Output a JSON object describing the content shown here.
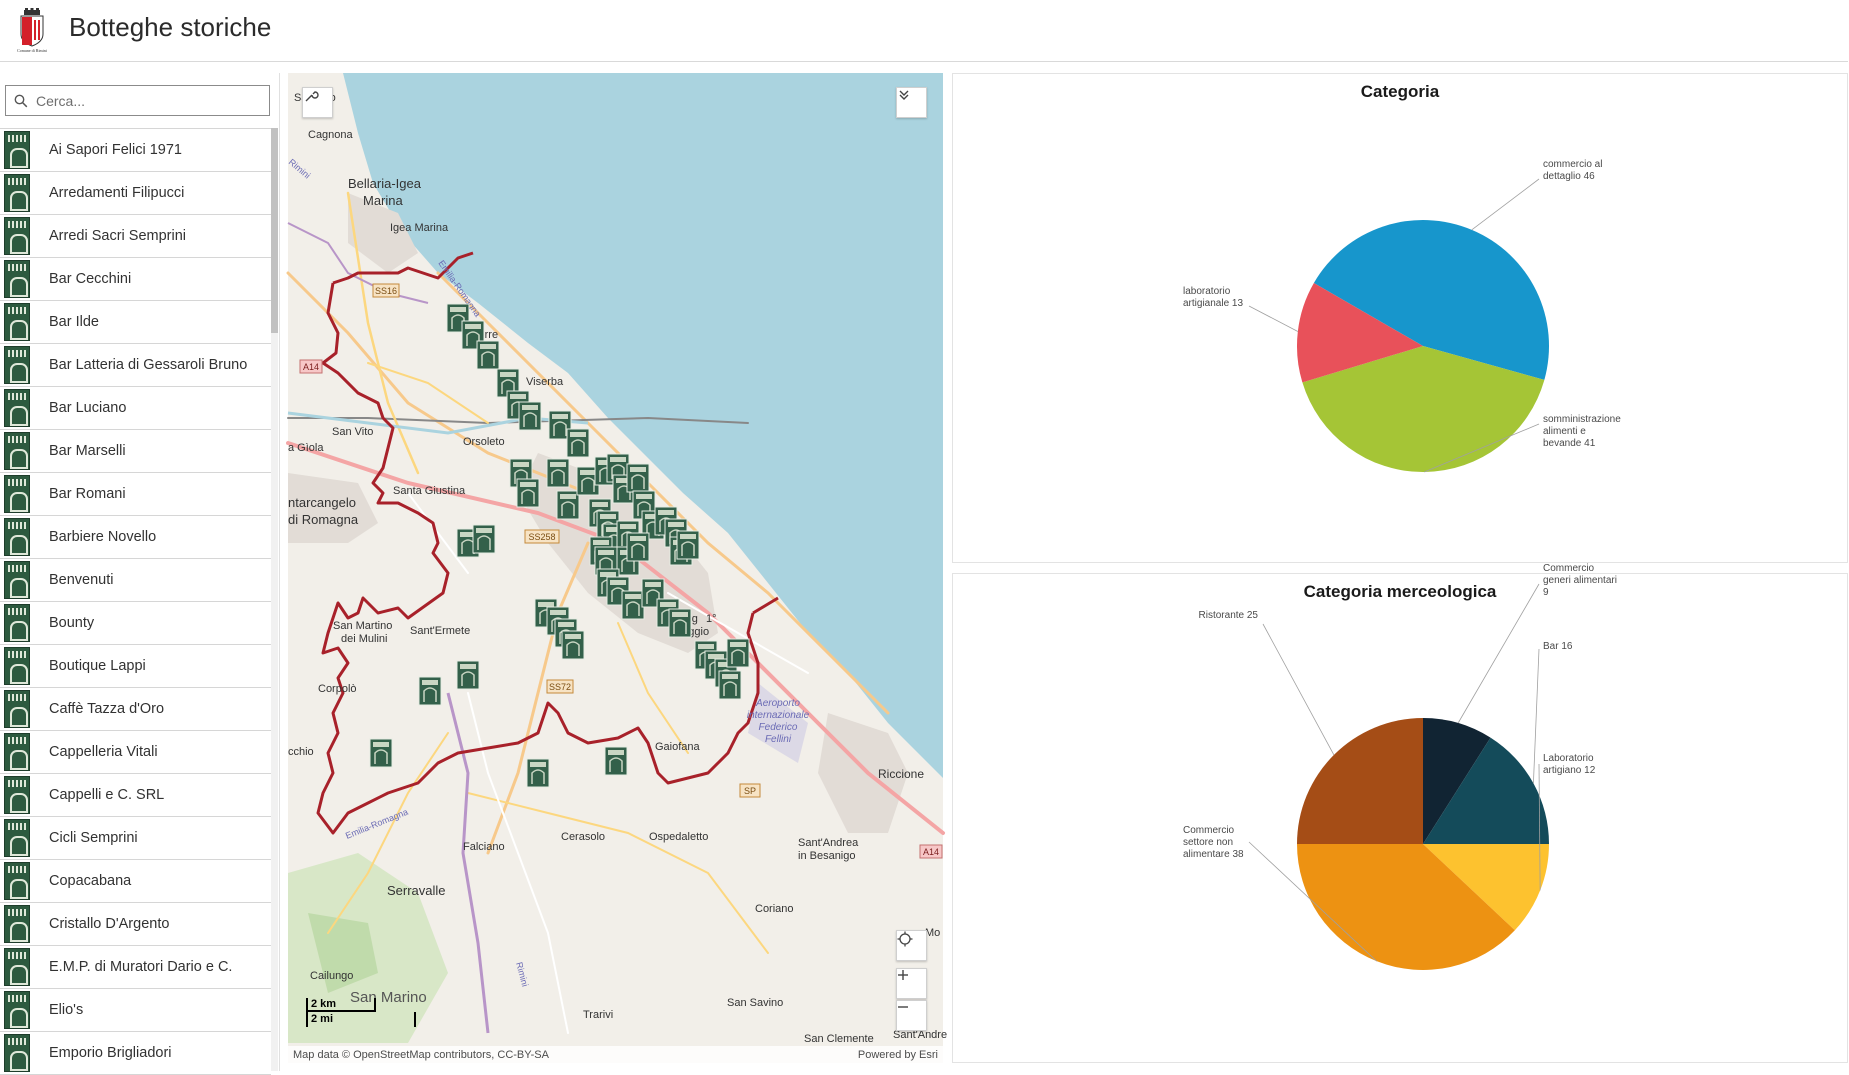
{
  "header": {
    "title": "Botteghe storiche",
    "logo_caption": "Comune di Rimini"
  },
  "search": {
    "placeholder": "Cerca..."
  },
  "list": {
    "items": [
      "Ai Sapori Felici 1971",
      "Arredamenti Filipucci",
      "Arredi Sacri Semprini",
      "Bar Cecchini",
      "Bar Ilde",
      "Bar Latteria di Gessaroli Bruno",
      "Bar Luciano",
      "Bar Marselli",
      "Bar Romani",
      "Barbiere Novello",
      "Benvenuti",
      "Bounty",
      "Boutique Lappi",
      "Caffè Tazza d'Oro",
      "Cappelleria Vitali",
      "Cappelli e C. SRL",
      "Cicli Semprini",
      "Copacabana",
      "Cristallo D'Argento",
      "E.M.P. di Muratori Dario e C.",
      "Elio's",
      "Emporio Brigliadori"
    ]
  },
  "map": {
    "attribution_left": "Map data © OpenStreetMap contributors, CC-BY-SA",
    "attribution_right": "Powered by Esri",
    "scale_km": "2 km",
    "scale_mi": "2 mi",
    "places": {
      "cagnona": "Cagnona",
      "bellaria": "Bellaria-Igea",
      "marina": "Marina",
      "igea": "Igea Marina",
      "san_vito": "San Vito",
      "orsoleto": "Orsoleto",
      "la_giola": "a Gìola",
      "santa_giustina": "Santa Giustina",
      "santarcangelo": "ntarcangelo",
      "di_romagna": "di Romagna",
      "san_martino": "San Martino",
      "dei_mulini": "dei Mulini",
      "santermete": "Sant'Ermete",
      "corpolo": "Corpolò",
      "cchio": "cchio",
      "villaggio": "Villagg",
      "maggio": "maggio",
      "primo": "1°",
      "galleria": "Gaiofana",
      "aeroporto1": "Aeroporto",
      "aeroporto2": "internazionale",
      "aeroporto3": "Federico",
      "aeroporto4": "Fellini",
      "riccione": "Riccione",
      "cerasolo": "Cerasolo",
      "ospedaletto": "Ospedaletto",
      "falciano": "Falciano",
      "serravalle": "Serravalle",
      "santandrea": "Sant'Andrea",
      "in_besanigo": "in Besanigo",
      "coriano": "Coriano",
      "cailungo": "Cailungo",
      "san_marino": "San Marino",
      "trarivi": "Trarivi",
      "san_savino": "San Savino",
      "san_clemente": "San Clemente",
      "santandrea_edge": "Sant'Andre",
      "torre": "Torre",
      "viserba": "Viserba",
      "sa": "Sa",
      "ro": "ro",
      "mo": "Mo",
      "rimini_river": "Rimini",
      "emilia_romagna1": "Emilia-Romagna",
      "emilia_romagna2": "Emilia-Romagna",
      "marecchia": "Marecchia",
      "rimini_river2": "Rimini"
    },
    "roads": {
      "ss16": "SS16",
      "a14": "A14",
      "ss258": "SS258",
      "ss72": "SS72",
      "sp": "SP",
      "a14b": "A14"
    }
  },
  "charts": {
    "colors": {
      "blue": "#1796cc",
      "red": "#e8515a",
      "green": "#a5c536",
      "navy": "#112433",
      "teal": "#144b5a",
      "yellow": "#fdc22f",
      "orange": "#ed9212",
      "brown": "#a54d16"
    }
  },
  "chart_data": [
    {
      "type": "pie",
      "title": "Categoria",
      "categories": [
        "commercio al dettaglio",
        "somministrazione alimenti e bevande",
        "laboratorio artigianale"
      ],
      "values": [
        46,
        41,
        13
      ],
      "labels": [
        "commercio al dettaglio 46",
        "somministrazione alimenti e bevande 41",
        "laboratorio artigianale 13"
      ]
    },
    {
      "type": "pie",
      "title": "Categoria merceologica",
      "categories": [
        "Commercio generi alimentari",
        "Bar",
        "Laboratorio artigiano",
        "Commercio settore non alimentare",
        "Ristorante"
      ],
      "values": [
        9,
        16,
        12,
        38,
        25
      ],
      "labels": [
        "Commercio generi alimentari 9",
        "Bar 16",
        "Laboratorio artigiano 12",
        "Commercio settore non alimentare 38",
        "Ristorante 25"
      ]
    }
  ]
}
